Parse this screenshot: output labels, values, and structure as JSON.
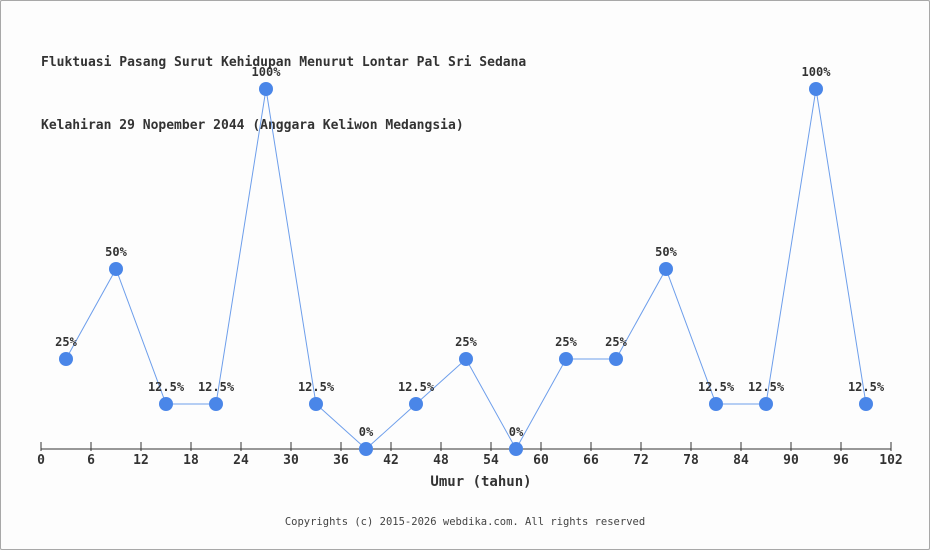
{
  "header": {
    "title_line1": "Fluktuasi Pasang Surut Kehidupan Menurut Lontar Pal Sri Sedana",
    "title_line2": "Kelahiran 29 Nopember 2044 (Anggara Keliwon Medangsia)"
  },
  "footer": {
    "copyright": "Copyrights (c) 2015-2026 webdika.com. All rights reserved"
  },
  "chart_data": {
    "type": "line",
    "title": "Fluktuasi Pasang Surut Kehidupan Menurut Lontar Pal Sri Sedana Kelahiran 29 Nopember 2044 (Anggara Keliwon Medangsia)",
    "xlabel": "Umur (tahun)",
    "ylabel": "",
    "x": [
      3,
      9,
      15,
      21,
      27,
      33,
      39,
      45,
      51,
      57,
      63,
      69,
      75,
      81,
      87,
      93,
      99
    ],
    "values": [
      25,
      50,
      12.5,
      12.5,
      100,
      12.5,
      0,
      12.5,
      25,
      0,
      25,
      25,
      50,
      12.5,
      12.5,
      100,
      12.5
    ],
    "point_labels": [
      "25%",
      "50%",
      "12.5%",
      "12.5%",
      "100%",
      "12.5%",
      "0%",
      "12.5%",
      "25%",
      "0%",
      "25%",
      "25%",
      "50%",
      "12.5%",
      "12.5%",
      "100%",
      "12.5%"
    ],
    "x_ticks": [
      0,
      6,
      12,
      18,
      24,
      30,
      36,
      42,
      48,
      54,
      60,
      66,
      72,
      78,
      84,
      90,
      96,
      102
    ],
    "xlim": [
      0,
      102
    ],
    "ylim": [
      0,
      100
    ],
    "grid": false,
    "legend": "none",
    "line_color": "#6d9eeb",
    "marker_color": "#4a86e8",
    "axis_color": "#333333",
    "label_color": "#333333"
  }
}
